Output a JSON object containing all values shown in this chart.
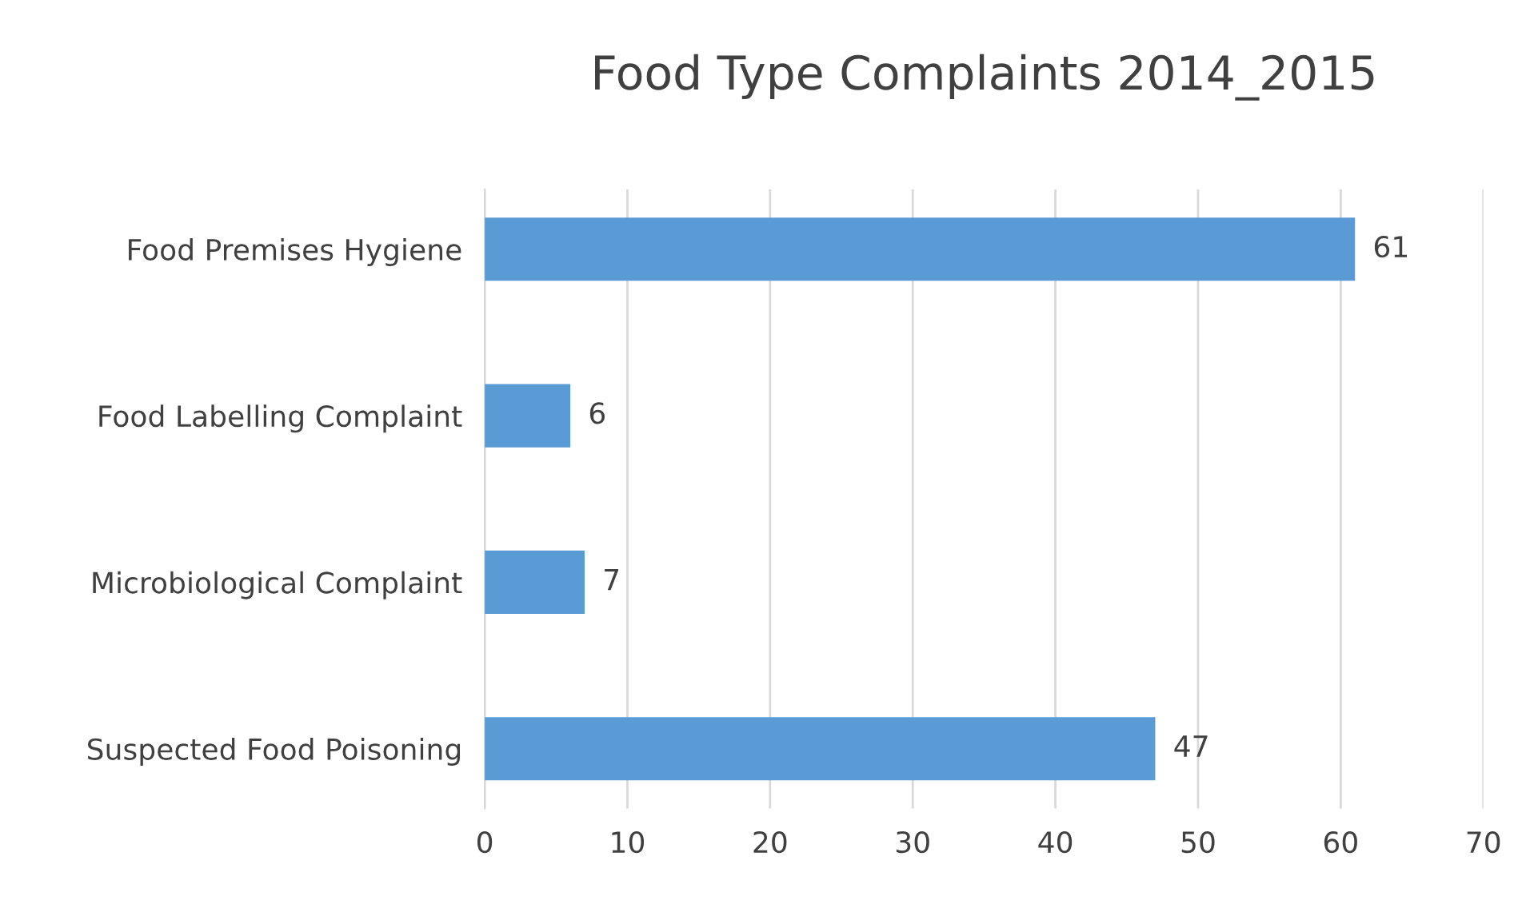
{
  "chart_data": {
    "type": "bar",
    "orientation": "horizontal",
    "title": "Food Type Complaints 2014_2015",
    "categories": [
      "Food Premises Hygiene",
      "Food Labelling Complaint",
      "Microbiological Complaint",
      "Suspected Food Poisoning"
    ],
    "values": [
      61,
      6,
      7,
      47
    ],
    "color": "#5b9bd5",
    "xlim": [
      0,
      70
    ],
    "xticks": [
      0,
      10,
      20,
      30,
      40,
      50,
      60,
      70
    ],
    "grid": "x",
    "data_labels": true,
    "legend": false
  }
}
